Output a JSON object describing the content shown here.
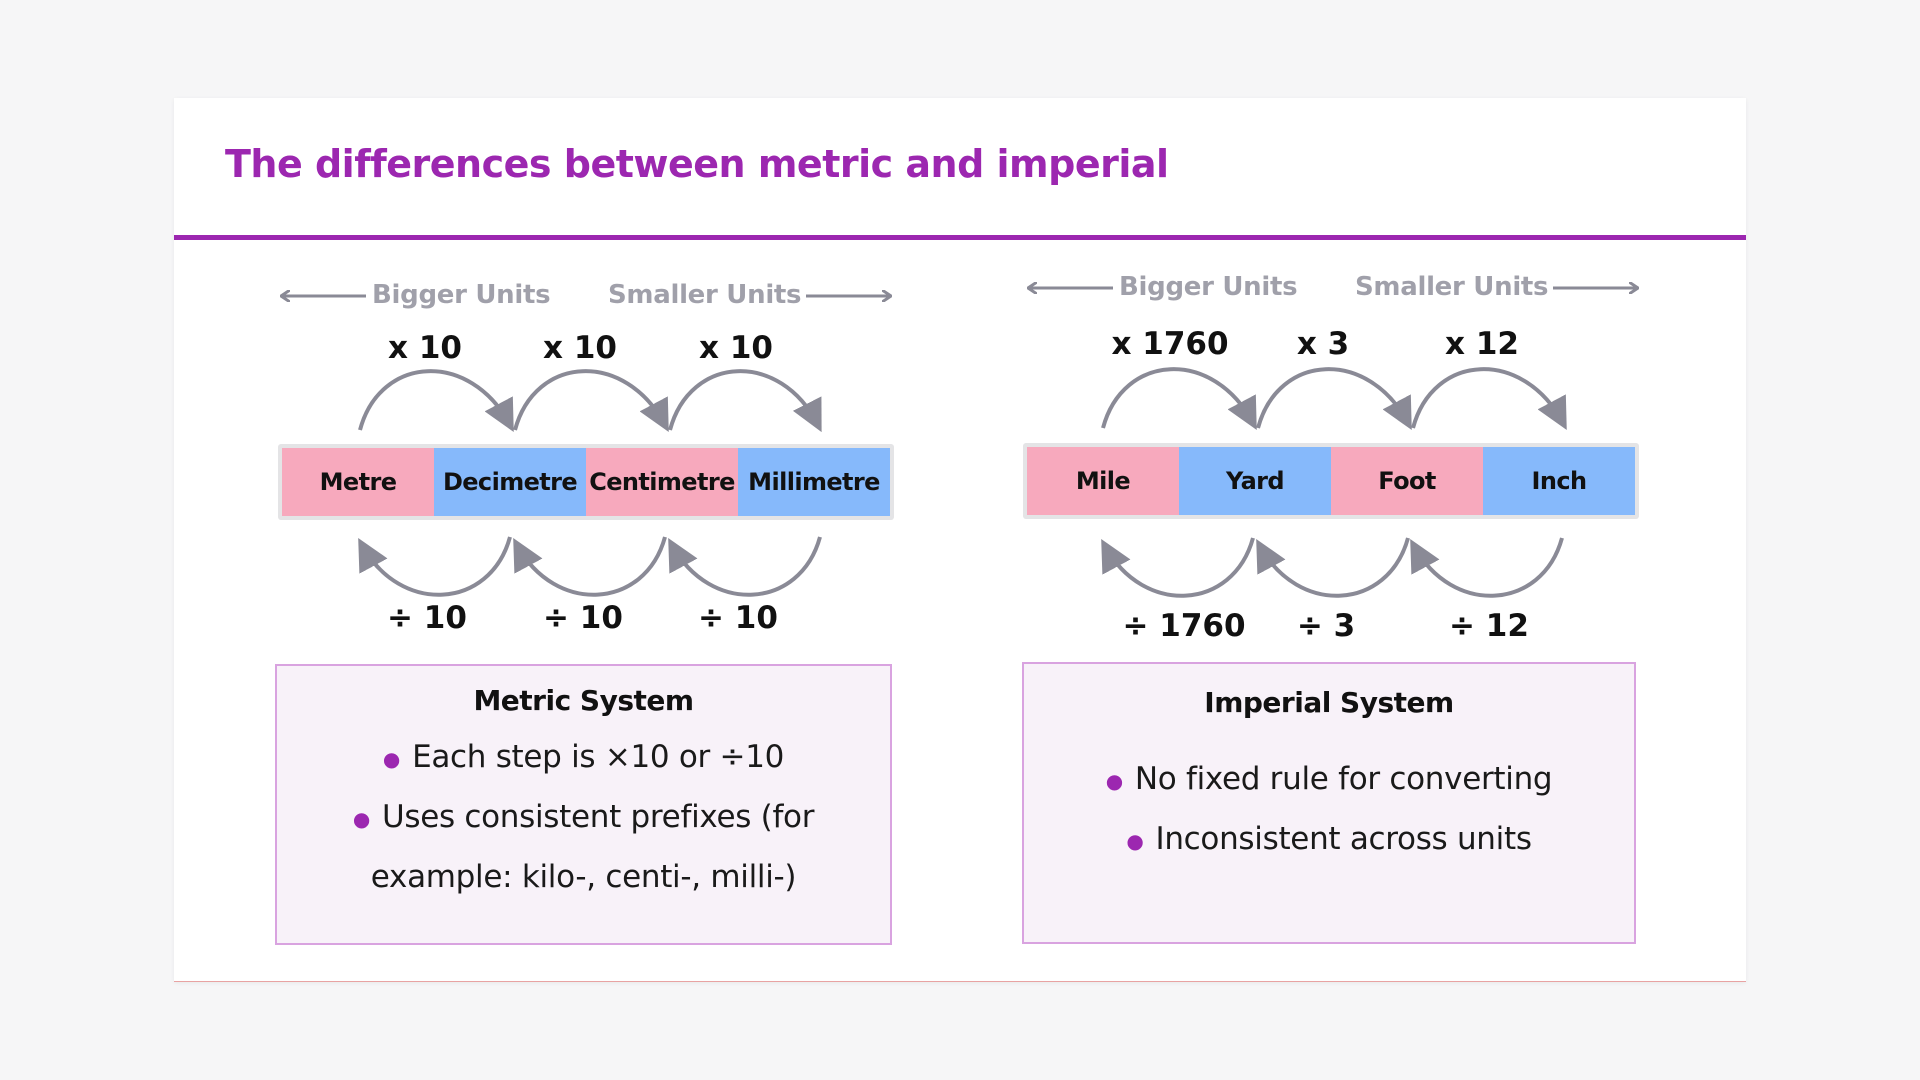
{
  "title": "The differences between metric and imperial",
  "colors": {
    "accent": "#9c27b0",
    "pink_unit": "#f7a9bd",
    "blue_unit": "#86b9fb",
    "arrow_grey": "#8a8a96",
    "box_fill": "#f8f2f9",
    "box_border": "#d9a3e0"
  },
  "metric": {
    "bigger_label": "Bigger Units",
    "smaller_label": "Smaller Units",
    "units": [
      "Metre",
      "Decimetre",
      "Centimetre",
      "Millimetre"
    ],
    "multiply_labels": [
      "x 10",
      "x 10",
      "x 10"
    ],
    "divide_labels": [
      "÷ 10",
      "÷ 10",
      "÷ 10"
    ],
    "box_title": "Metric System",
    "bullet_1": "Each step is ×10 or ÷10",
    "bullet_2_line_1": "Uses consistent prefixes (for",
    "bullet_2_line_2": "example: kilo-, centi-, milli-)"
  },
  "imperial": {
    "bigger_label": "Bigger Units",
    "smaller_label": "Smaller Units",
    "units": [
      "Mile",
      "Yard",
      "Foot",
      "Inch"
    ],
    "multiply_labels": [
      "x 1760",
      "x 3",
      "x 12"
    ],
    "divide_labels": [
      "÷ 1760",
      "÷ 3",
      "÷ 12"
    ],
    "box_title": "Imperial System",
    "bullet_1": "No fixed rule for converting",
    "bullet_2": "Inconsistent across units"
  }
}
